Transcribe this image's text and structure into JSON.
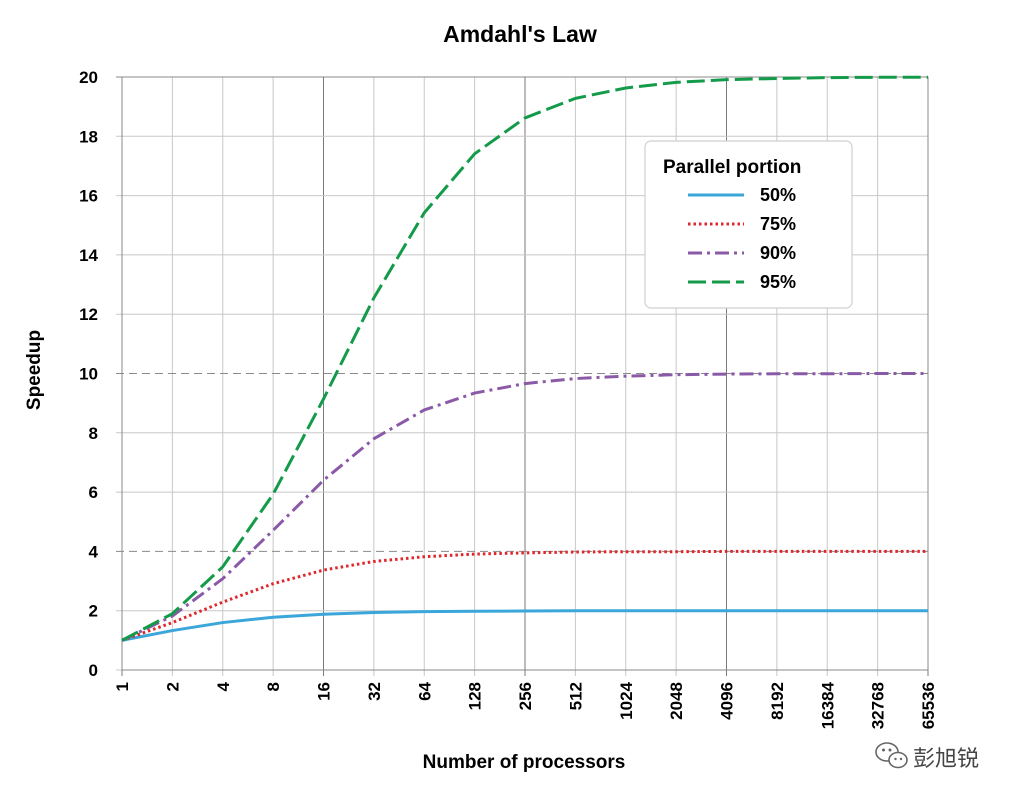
{
  "chart_data": {
    "type": "line",
    "title": "Amdahl's Law",
    "xlabel": "Number of processors",
    "ylabel": "Speedup",
    "x": [
      1,
      2,
      4,
      8,
      16,
      32,
      64,
      128,
      256,
      512,
      1024,
      2048,
      4096,
      8192,
      16384,
      32768,
      65536
    ],
    "x_tick_labels": [
      "1",
      "2",
      "4",
      "8",
      "16",
      "32",
      "64",
      "128",
      "256",
      "512",
      "1024",
      "2048",
      "4096",
      "8192",
      "16384",
      "32768",
      "65536"
    ],
    "x_scale": "log2",
    "ylim": [
      0,
      20
    ],
    "y_ticks": [
      0,
      2,
      4,
      6,
      8,
      10,
      12,
      14,
      16,
      18,
      20
    ],
    "grid": true,
    "legend": {
      "title": "Parallel portion",
      "placement": "top-right"
    },
    "series": [
      {
        "name": "50%",
        "color": "#3aa6d9",
        "style": "solid",
        "values": [
          1.0,
          1.33,
          1.6,
          1.78,
          1.88,
          1.94,
          1.97,
          1.98,
          1.99,
          2.0,
          2.0,
          2.0,
          2.0,
          2.0,
          2.0,
          2.0,
          2.0
        ]
      },
      {
        "name": "75%",
        "color": "#e0262a",
        "style": "dotted",
        "values": [
          1.0,
          1.6,
          2.29,
          2.91,
          3.37,
          3.66,
          3.82,
          3.91,
          3.95,
          3.98,
          3.99,
          3.99,
          4.0,
          4.0,
          4.0,
          4.0,
          4.0
        ]
      },
      {
        "name": "90%",
        "color": "#8a5aa8",
        "style": "dash-dot",
        "values": [
          1.0,
          1.82,
          3.08,
          4.71,
          6.4,
          7.8,
          8.77,
          9.34,
          9.66,
          9.83,
          9.91,
          9.96,
          9.98,
          9.99,
          9.99,
          10.0,
          10.0
        ]
      },
      {
        "name": "95%",
        "color": "#139b4a",
        "style": "dashed",
        "values": [
          1.0,
          1.9,
          3.48,
          5.93,
          9.14,
          12.55,
          15.42,
          17.41,
          18.62,
          19.28,
          19.63,
          19.82,
          19.91,
          19.95,
          19.98,
          19.99,
          19.99
        ]
      }
    ]
  },
  "watermark": {
    "text": "彭旭锐",
    "icon": "wechat-icon"
  }
}
